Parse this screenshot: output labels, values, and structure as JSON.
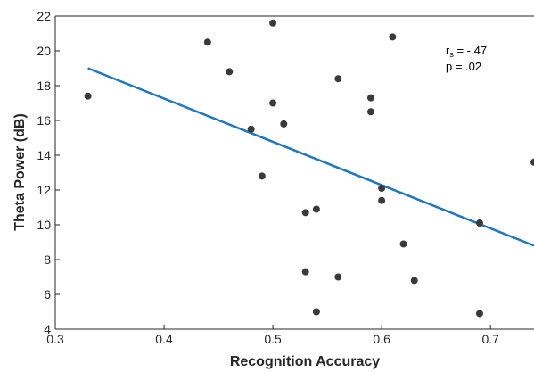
{
  "chart_data": {
    "type": "scatter",
    "xlabel": "Recognition Accuracy",
    "ylabel": "Theta Power (dB)",
    "xlim": [
      0.3,
      0.74
    ],
    "ylim": [
      4,
      22
    ],
    "x_ticks": [
      "0.3",
      "0.4",
      "0.5",
      "0.6",
      "0.7"
    ],
    "y_ticks": [
      "4",
      "6",
      "8",
      "10",
      "12",
      "14",
      "16",
      "18",
      "20",
      "22"
    ],
    "grid": false,
    "points": [
      {
        "x": 0.33,
        "y": 17.4
      },
      {
        "x": 0.44,
        "y": 20.5
      },
      {
        "x": 0.46,
        "y": 18.8
      },
      {
        "x": 0.48,
        "y": 15.5
      },
      {
        "x": 0.49,
        "y": 12.8
      },
      {
        "x": 0.5,
        "y": 21.6
      },
      {
        "x": 0.5,
        "y": 17.0
      },
      {
        "x": 0.51,
        "y": 15.8
      },
      {
        "x": 0.53,
        "y": 10.7
      },
      {
        "x": 0.53,
        "y": 7.3
      },
      {
        "x": 0.54,
        "y": 10.9
      },
      {
        "x": 0.54,
        "y": 5.0
      },
      {
        "x": 0.56,
        "y": 18.4
      },
      {
        "x": 0.56,
        "y": 7.0
      },
      {
        "x": 0.59,
        "y": 17.3
      },
      {
        "x": 0.59,
        "y": 16.5
      },
      {
        "x": 0.6,
        "y": 12.1
      },
      {
        "x": 0.6,
        "y": 11.4
      },
      {
        "x": 0.61,
        "y": 20.8
      },
      {
        "x": 0.62,
        "y": 8.9
      },
      {
        "x": 0.63,
        "y": 6.8
      },
      {
        "x": 0.69,
        "y": 10.1
      },
      {
        "x": 0.69,
        "y": 4.9
      },
      {
        "x": 0.74,
        "y": 13.6
      }
    ],
    "fit_line": {
      "x": [
        0.33,
        0.74
      ],
      "y": [
        19.0,
        8.8
      ],
      "color": "#1f77c0"
    },
    "marker_color": "#3a3a3a",
    "annotation": {
      "r_prefix": "r",
      "r_sub": "s",
      "r_value": " = -.47",
      "p_text": "p = .02"
    }
  }
}
